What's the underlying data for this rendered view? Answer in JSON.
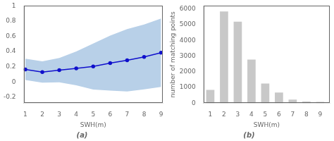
{
  "chart_data": [
    {
      "type": "line",
      "x": [
        1,
        2,
        3,
        4,
        5,
        6,
        7,
        8,
        9
      ],
      "values": [
        0.165,
        0.13,
        0.155,
        0.178,
        0.203,
        0.248,
        0.285,
        0.328,
        0.385
      ],
      "band": {
        "upper": [
          0.305,
          0.27,
          0.315,
          0.4,
          0.505,
          0.61,
          0.695,
          0.755,
          0.835
        ],
        "lower": [
          0.025,
          -0.01,
          -0.005,
          -0.045,
          -0.1,
          -0.115,
          -0.125,
          -0.098,
          -0.065
        ],
        "color": "#b8d0e8"
      },
      "color": "#1010cc",
      "marker": "circle",
      "xlim": [
        0.9,
        9.1
      ],
      "xticks": [
        1,
        2,
        3,
        4,
        5,
        6,
        7,
        8,
        9
      ],
      "ylim": [
        -0.28,
        1
      ],
      "yticks": [
        -0.2,
        0,
        0.2,
        0.4,
        0.6,
        0.8,
        1
      ],
      "xlabel": "SWH(m)",
      "annotation": "(a)",
      "grid": false
    },
    {
      "type": "bar",
      "x": [
        1,
        2,
        3,
        4,
        5,
        6,
        7,
        8,
        9
      ],
      "values": [
        850,
        5850,
        5200,
        2780,
        1250,
        680,
        230,
        105,
        90
      ],
      "color": "#c8c8c8",
      "xlim": [
        0.5,
        9.7
      ],
      "xticks": [
        1,
        2,
        3,
        4,
        5,
        6,
        7,
        8,
        9
      ],
      "ylim": [
        0,
        6200
      ],
      "yticks": [
        0,
        1000,
        2000,
        3000,
        4000,
        5000,
        6000
      ],
      "xlabel": "SWH(m)",
      "ylabel": "number of matching points",
      "annotation": "(b)",
      "grid": false
    }
  ]
}
